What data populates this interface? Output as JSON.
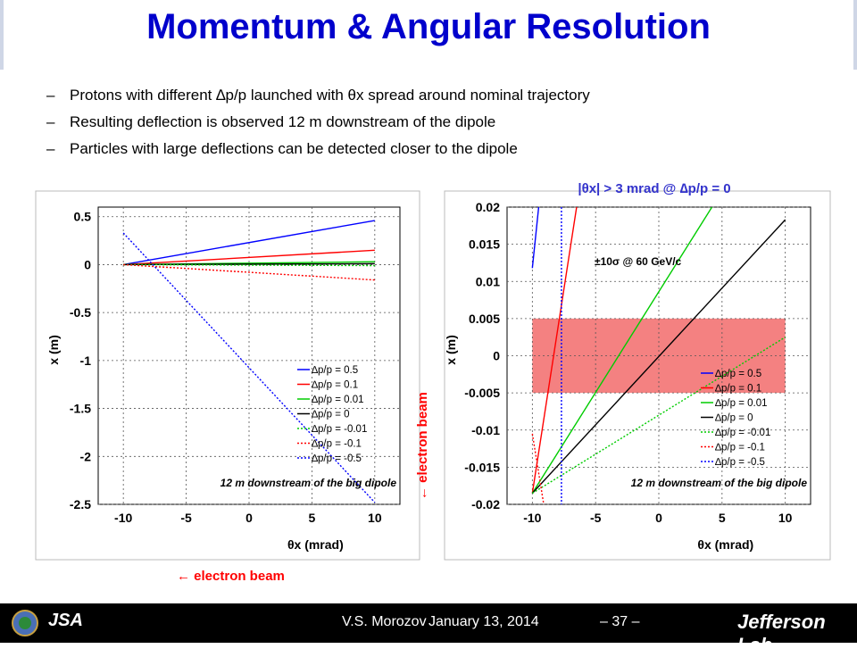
{
  "slide": {
    "title": "Momentum & Angular Resolution",
    "bullets": [
      "Protons with different ∆p/p launched with θx spread around nominal trajectory",
      "Resulting deflection is observed 12 m downstream of the dipole",
      "Particles with large deflections can be detected closer to the dipole"
    ],
    "bullet_dash": "–"
  },
  "annotations": {
    "left_beam_label": "← electron beam",
    "right_beam_label": "← electron beam",
    "right_title": "|θx| > 3 mrad @ ∆p/p = 0",
    "sigma_label": "±10σ  @ 60 GeV/c"
  },
  "footer": {
    "author": "V.S. Morozov",
    "date": "January 13, 2014",
    "page": "– 37 –",
    "jsa": "JSA",
    "lab": "Jefferson Lab"
  },
  "colors": {
    "title": "#0000cc",
    "beam_label": "#ff0000",
    "right_title": "#3333cc",
    "band": "#f26b6b"
  },
  "chart_data": [
    {
      "type": "line",
      "panel": "left",
      "xlabel": "θx (mrad)",
      "ylabel": "x (m)",
      "xlim": [
        -12,
        12
      ],
      "ylim": [
        -2.5,
        0.6
      ],
      "xticks": [
        -10,
        -5,
        0,
        5,
        10
      ],
      "yticks": [
        0.5,
        0,
        -0.5,
        -1,
        -1.5,
        -2,
        -2.5
      ],
      "xtick_labels": [
        "-10",
        "-5",
        "0",
        "5",
        "10"
      ],
      "ytick_labels": [
        "0.5",
        "0",
        "-0.5",
        "-1",
        "-1.5",
        "-2",
        "-2.5"
      ],
      "grid": true,
      "legend_position": "bottom-right",
      "annotation": "12 m downstream of the big dipole",
      "series": [
        {
          "name": "∆p/p = 0.5",
          "color": "#0000ff",
          "dash": "solid",
          "x": [
            -10,
            10
          ],
          "y": [
            0.0,
            0.46
          ]
        },
        {
          "name": "∆p/p = 0.1",
          "color": "#ff0000",
          "dash": "solid",
          "x": [
            -10,
            10
          ],
          "y": [
            0.0,
            0.15
          ]
        },
        {
          "name": "∆p/p = 0.01",
          "color": "#00cc00",
          "dash": "solid",
          "x": [
            -10,
            10
          ],
          "y": [
            0.0,
            0.03
          ]
        },
        {
          "name": "∆p/p = 0",
          "color": "#000000",
          "dash": "solid",
          "x": [
            -10,
            10
          ],
          "y": [
            0.0,
            0.01
          ]
        },
        {
          "name": "∆p/p = -0.01",
          "color": "#00cc00",
          "dash": "dotted",
          "x": [
            -10,
            10
          ],
          "y": [
            0.0,
            -0.01
          ]
        },
        {
          "name": "∆p/p = -0.1",
          "color": "#ff0000",
          "dash": "dotted",
          "x": [
            -10,
            10
          ],
          "y": [
            0.0,
            -0.16
          ]
        },
        {
          "name": "∆p/p = -0.5",
          "color": "#0000ff",
          "dash": "dotted",
          "x": [
            -10,
            10
          ],
          "y": [
            0.33,
            -2.48
          ]
        }
      ]
    },
    {
      "type": "line",
      "panel": "right",
      "xlabel": "θx (mrad)",
      "ylabel": "x (m)",
      "xlim": [
        -12,
        12
      ],
      "ylim": [
        -0.02,
        0.02
      ],
      "xticks": [
        -10,
        -5,
        0,
        5,
        10
      ],
      "yticks": [
        0.02,
        0.015,
        0.01,
        0.005,
        0,
        -0.005,
        -0.01,
        -0.015,
        -0.02
      ],
      "xtick_labels": [
        "-10",
        "-5",
        "0",
        "5",
        "10"
      ],
      "ytick_labels": [
        "0.02",
        "0.015",
        "0.01",
        "0.005",
        "0",
        "-0.005",
        "-0.01",
        "-0.015",
        "-0.02"
      ],
      "grid": true,
      "legend_position": "bottom-right",
      "annotation": "12 m downstream of the big dipole",
      "band": {
        "x": [
          -10,
          10
        ],
        "y": [
          -0.005,
          0.005
        ]
      },
      "series": [
        {
          "name": "∆p/p = 0.5",
          "color": "#0000ff",
          "dash": "solid",
          "x": [
            -10,
            -9.5
          ],
          "y": [
            0.0118,
            0.02
          ]
        },
        {
          "name": "∆p/p = 0.1",
          "color": "#ff0000",
          "dash": "solid",
          "x": [
            -10,
            -6.5
          ],
          "y": [
            -0.0185,
            0.02
          ]
        },
        {
          "name": "∆p/p = 0.01",
          "color": "#00cc00",
          "dash": "solid",
          "x": [
            -10,
            4.2
          ],
          "y": [
            -0.0185,
            0.02
          ]
        },
        {
          "name": "∆p/p = 0",
          "color": "#000000",
          "dash": "solid",
          "x": [
            -10,
            10
          ],
          "y": [
            -0.0185,
            0.0183
          ]
        },
        {
          "name": "∆p/p = -0.01",
          "color": "#00cc00",
          "dash": "dotted",
          "x": [
            -10,
            10
          ],
          "y": [
            -0.0185,
            0.0025
          ]
        },
        {
          "name": "∆p/p = -0.1",
          "color": "#ff0000",
          "dash": "dotted",
          "x": [
            -10,
            -9.1
          ],
          "y": [
            -0.0105,
            -0.02
          ]
        },
        {
          "name": "∆p/p = -0.5",
          "color": "#0000ff",
          "dash": "dotted",
          "x": [
            -7.7,
            -7.7
          ],
          "y": [
            0.02,
            -0.02
          ]
        }
      ]
    }
  ]
}
